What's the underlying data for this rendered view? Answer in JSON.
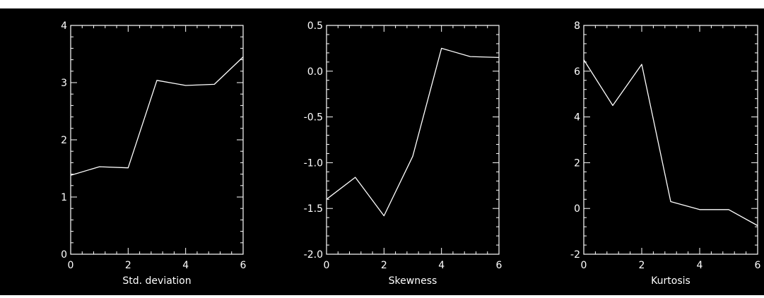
{
  "colors": {
    "background": "#000000",
    "foreground": "#ffffff",
    "border": "#ffffff"
  },
  "chart_data": [
    {
      "type": "line",
      "xlabel": "Std. deviation",
      "ylabel": "",
      "xlim": [
        0,
        6
      ],
      "ylim": [
        0,
        4
      ],
      "xticks": [
        0,
        2,
        4,
        6
      ],
      "yticks": [
        0,
        1,
        2,
        3,
        4
      ],
      "ytick_labels": [
        "0",
        "1",
        "2",
        "3",
        "4"
      ],
      "x": [
        0,
        1,
        2,
        3,
        4,
        5,
        6
      ],
      "series": [
        {
          "values": [
            1.38,
            1.53,
            1.51,
            3.04,
            2.95,
            2.97,
            3.45
          ]
        }
      ]
    },
    {
      "type": "line",
      "xlabel": "Skewness",
      "ylabel": "",
      "xlim": [
        0,
        6
      ],
      "ylim": [
        -2.0,
        0.5
      ],
      "xticks": [
        0,
        2,
        4,
        6
      ],
      "yticks": [
        -2.0,
        -1.5,
        -1.0,
        -0.5,
        0.0,
        0.5
      ],
      "ytick_labels": [
        "-2.0",
        "-1.5",
        "-1.0",
        "-0.5",
        "0.0",
        "0.5"
      ],
      "x": [
        0,
        1,
        2,
        3,
        4,
        5,
        6
      ],
      "series": [
        {
          "values": [
            -1.4,
            -1.16,
            -1.58,
            -0.93,
            0.25,
            0.16,
            0.15
          ]
        }
      ]
    },
    {
      "type": "line",
      "xlabel": "Kurtosis",
      "ylabel": "",
      "xlim": [
        0,
        6
      ],
      "ylim": [
        -2,
        8
      ],
      "xticks": [
        0,
        2,
        4,
        6
      ],
      "yticks": [
        -2,
        0,
        2,
        4,
        6,
        8
      ],
      "ytick_labels": [
        "-2",
        "0",
        "2",
        "4",
        "6",
        "8"
      ],
      "x": [
        0,
        1,
        2,
        3,
        4,
        5,
        6
      ],
      "series": [
        {
          "values": [
            6.5,
            4.5,
            6.3,
            0.3,
            -0.05,
            -0.05,
            -0.75
          ]
        }
      ]
    }
  ]
}
